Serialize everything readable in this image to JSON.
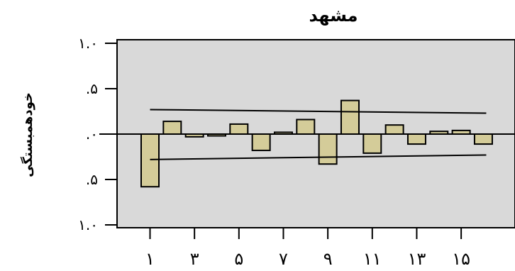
{
  "chart_data": {
    "type": "bar",
    "title": "مشهد",
    "xlabel": "",
    "ylabel": "خودهمبستگی",
    "ylim": [
      -1.0,
      1.0
    ],
    "yticks": [
      {
        "value": 1.0,
        "label": "۱.۰"
      },
      {
        "value": 0.5,
        "label": ".۵"
      },
      {
        "value": 0.0,
        "label": ".۰"
      },
      {
        "value": -0.5,
        "label": ".۵"
      },
      {
        "value": -1.0,
        "label": "۱.۰"
      }
    ],
    "xticks": [
      {
        "lag": 1,
        "label": "۱"
      },
      {
        "lag": 3,
        "label": "۳"
      },
      {
        "lag": 5,
        "label": "۵"
      },
      {
        "lag": 7,
        "label": "۷"
      },
      {
        "lag": 9,
        "label": "۹"
      },
      {
        "lag": 11,
        "label": "۱۱"
      },
      {
        "lag": 13,
        "label": "۱۳"
      },
      {
        "lag": 15,
        "label": "۱۵"
      }
    ],
    "lags": [
      1,
      2,
      3,
      4,
      5,
      6,
      7,
      8,
      9,
      10,
      11,
      12,
      13,
      14,
      15,
      16
    ],
    "values": [
      -0.58,
      0.14,
      -0.03,
      -0.02,
      0.11,
      -0.18,
      0.02,
      0.16,
      -0.33,
      0.37,
      -0.21,
      0.1,
      -0.11,
      0.03,
      0.04,
      -0.11
    ],
    "confidence_upper": {
      "start": 0.27,
      "end": 0.23
    },
    "confidence_lower": {
      "start": -0.28,
      "end": -0.23
    },
    "grid": false,
    "colors": {
      "plot_background": "#d9d9d9",
      "bar_fill": "#d4cc99",
      "bar_stroke": "#000000"
    }
  }
}
